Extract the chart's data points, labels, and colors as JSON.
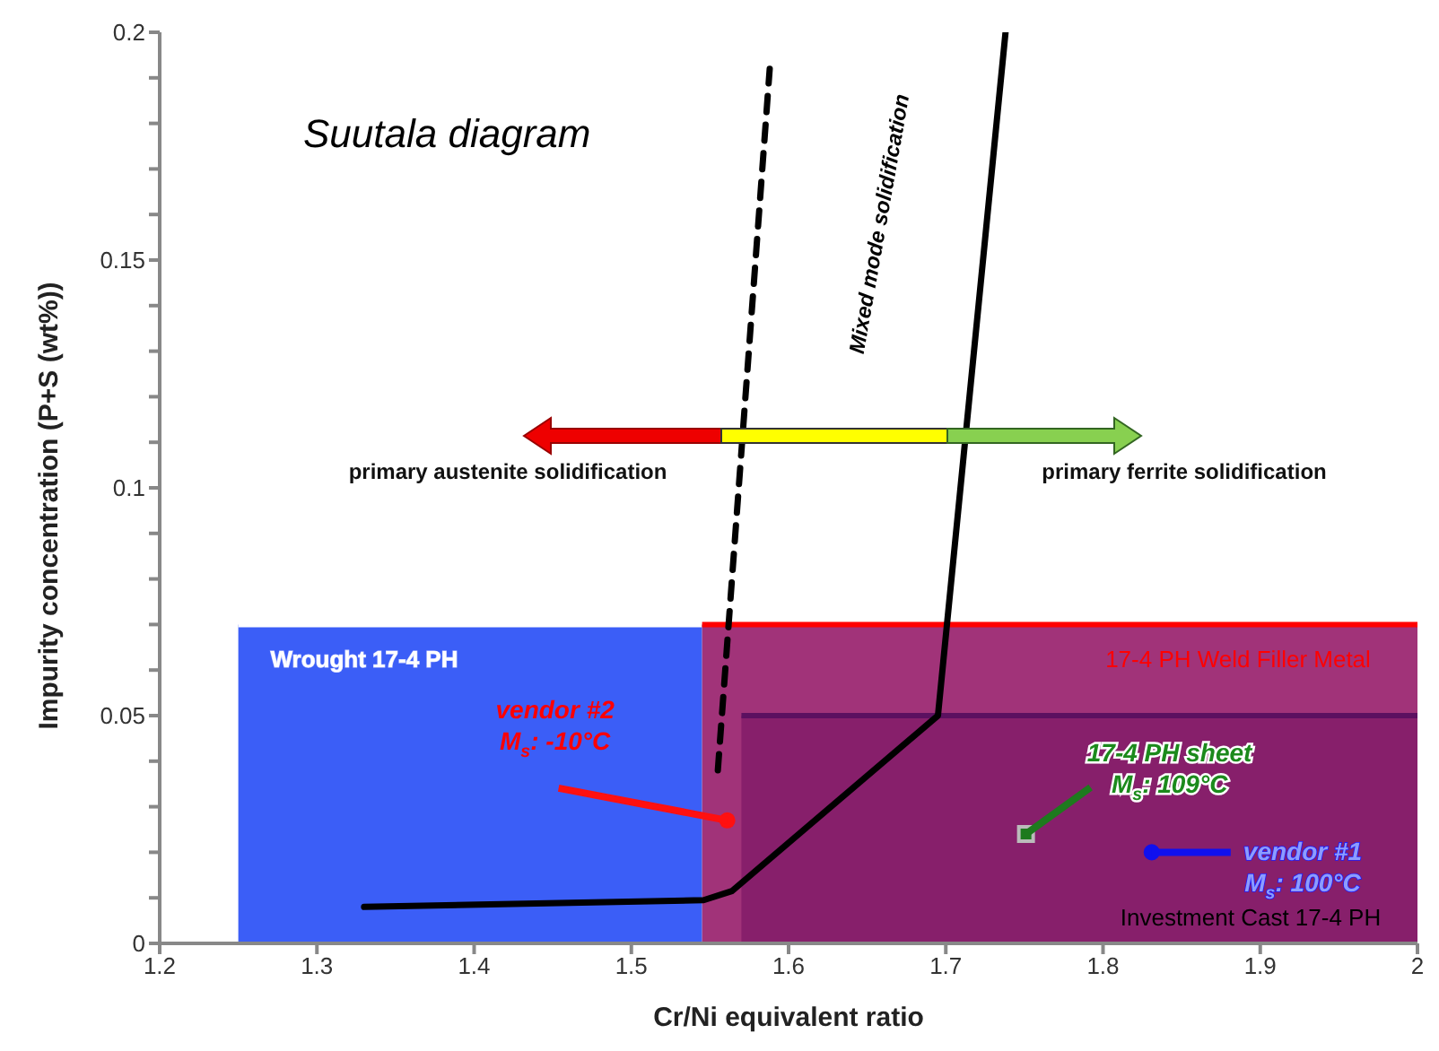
{
  "chart_data": {
    "type": "line",
    "title": "Suutala diagram",
    "xlabel": "Cr/Ni equivalent ratio",
    "ylabel": "Impurity concentration (P+S (wt%))",
    "xlim": [
      1.2,
      2.0
    ],
    "xticks": [
      1.2,
      1.3,
      1.4,
      1.5,
      1.6,
      1.7,
      1.8,
      1.9,
      2
    ],
    "ylim": [
      0,
      0.2
    ],
    "yticks": [
      0,
      {
        "value": 0.01,
        "label": null
      },
      {
        "value": 0.02,
        "label": null
      },
      {
        "value": 0.03,
        "label": null
      },
      {
        "value": 0.04,
        "label": null
      },
      0.05,
      {
        "value": 0.06,
        "label": null
      },
      {
        "value": 0.07,
        "label": null
      },
      {
        "value": 0.08,
        "label": null
      },
      {
        "value": 0.09,
        "label": null
      },
      0.1,
      {
        "value": 0.11,
        "label": null
      },
      {
        "value": 0.12,
        "label": null
      },
      {
        "value": 0.13,
        "label": null
      },
      {
        "value": 0.14,
        "label": null
      },
      0.15,
      {
        "value": 0.16,
        "label": null
      },
      {
        "value": 0.17,
        "label": null
      },
      {
        "value": 0.18,
        "label": null
      },
      {
        "value": 0.19,
        "label": null
      },
      0.2
    ],
    "series": [
      {
        "type": "area",
        "color": "#3b5ef7",
        "x": [
          1.25,
          1.545
        ],
        "values": [
          0.07,
          0.07
        ]
      },
      {
        "type": "area",
        "color": "#a13379",
        "x": [
          1.545,
          2.0
        ],
        "values": [
          0.07,
          0.07
        ]
      },
      {
        "type": "area",
        "color": "#871f6b",
        "x": [
          1.57,
          2.0
        ],
        "values": [
          0.05,
          0.05
        ]
      },
      {
        "color": "#000000",
        "line_style": "dashed",
        "x": [
          1.555,
          1.588
        ],
        "values": [
          0.038,
          0.192
        ]
      },
      {
        "color": "#000000",
        "line_style": "solid",
        "x": [
          1.33,
          1.546,
          1.564,
          1.695,
          1.738
        ],
        "values": [
          0.008,
          0.0095,
          0.0115,
          0.05,
          0.2
        ]
      },
      {
        "type": "scatter",
        "color": "#ff1010",
        "marker": "circle",
        "x": [
          1.561
        ],
        "values": [
          0.027
        ]
      },
      {
        "type": "scatter",
        "color": "#1e7a1e",
        "marker": "square",
        "x": [
          1.751
        ],
        "values": [
          0.024
        ]
      },
      {
        "type": "scatter",
        "color": "#1010ee",
        "marker": "circle",
        "x": [
          1.831
        ],
        "values": [
          0.02
        ]
      }
    ],
    "annotations": [
      "Mixed mode solidification",
      "primary austenite solidification",
      "primary ferrite solidification",
      "Wrought 17-4 PH",
      "17-4 PH Weld Filler Metal",
      "Investment Cast 17-4 PH",
      {
        "text": "vendor #2\nM$_{s}$: -10°C",
        "x": 1.561,
        "y": 0.027
      },
      {
        "text": "17-4 PH sheet\nM$_{s}$: 109°C",
        "x": 1.751,
        "y": 0.024
      },
      "vendor #1\nM$_{s}$: 100°C"
    ]
  }
}
